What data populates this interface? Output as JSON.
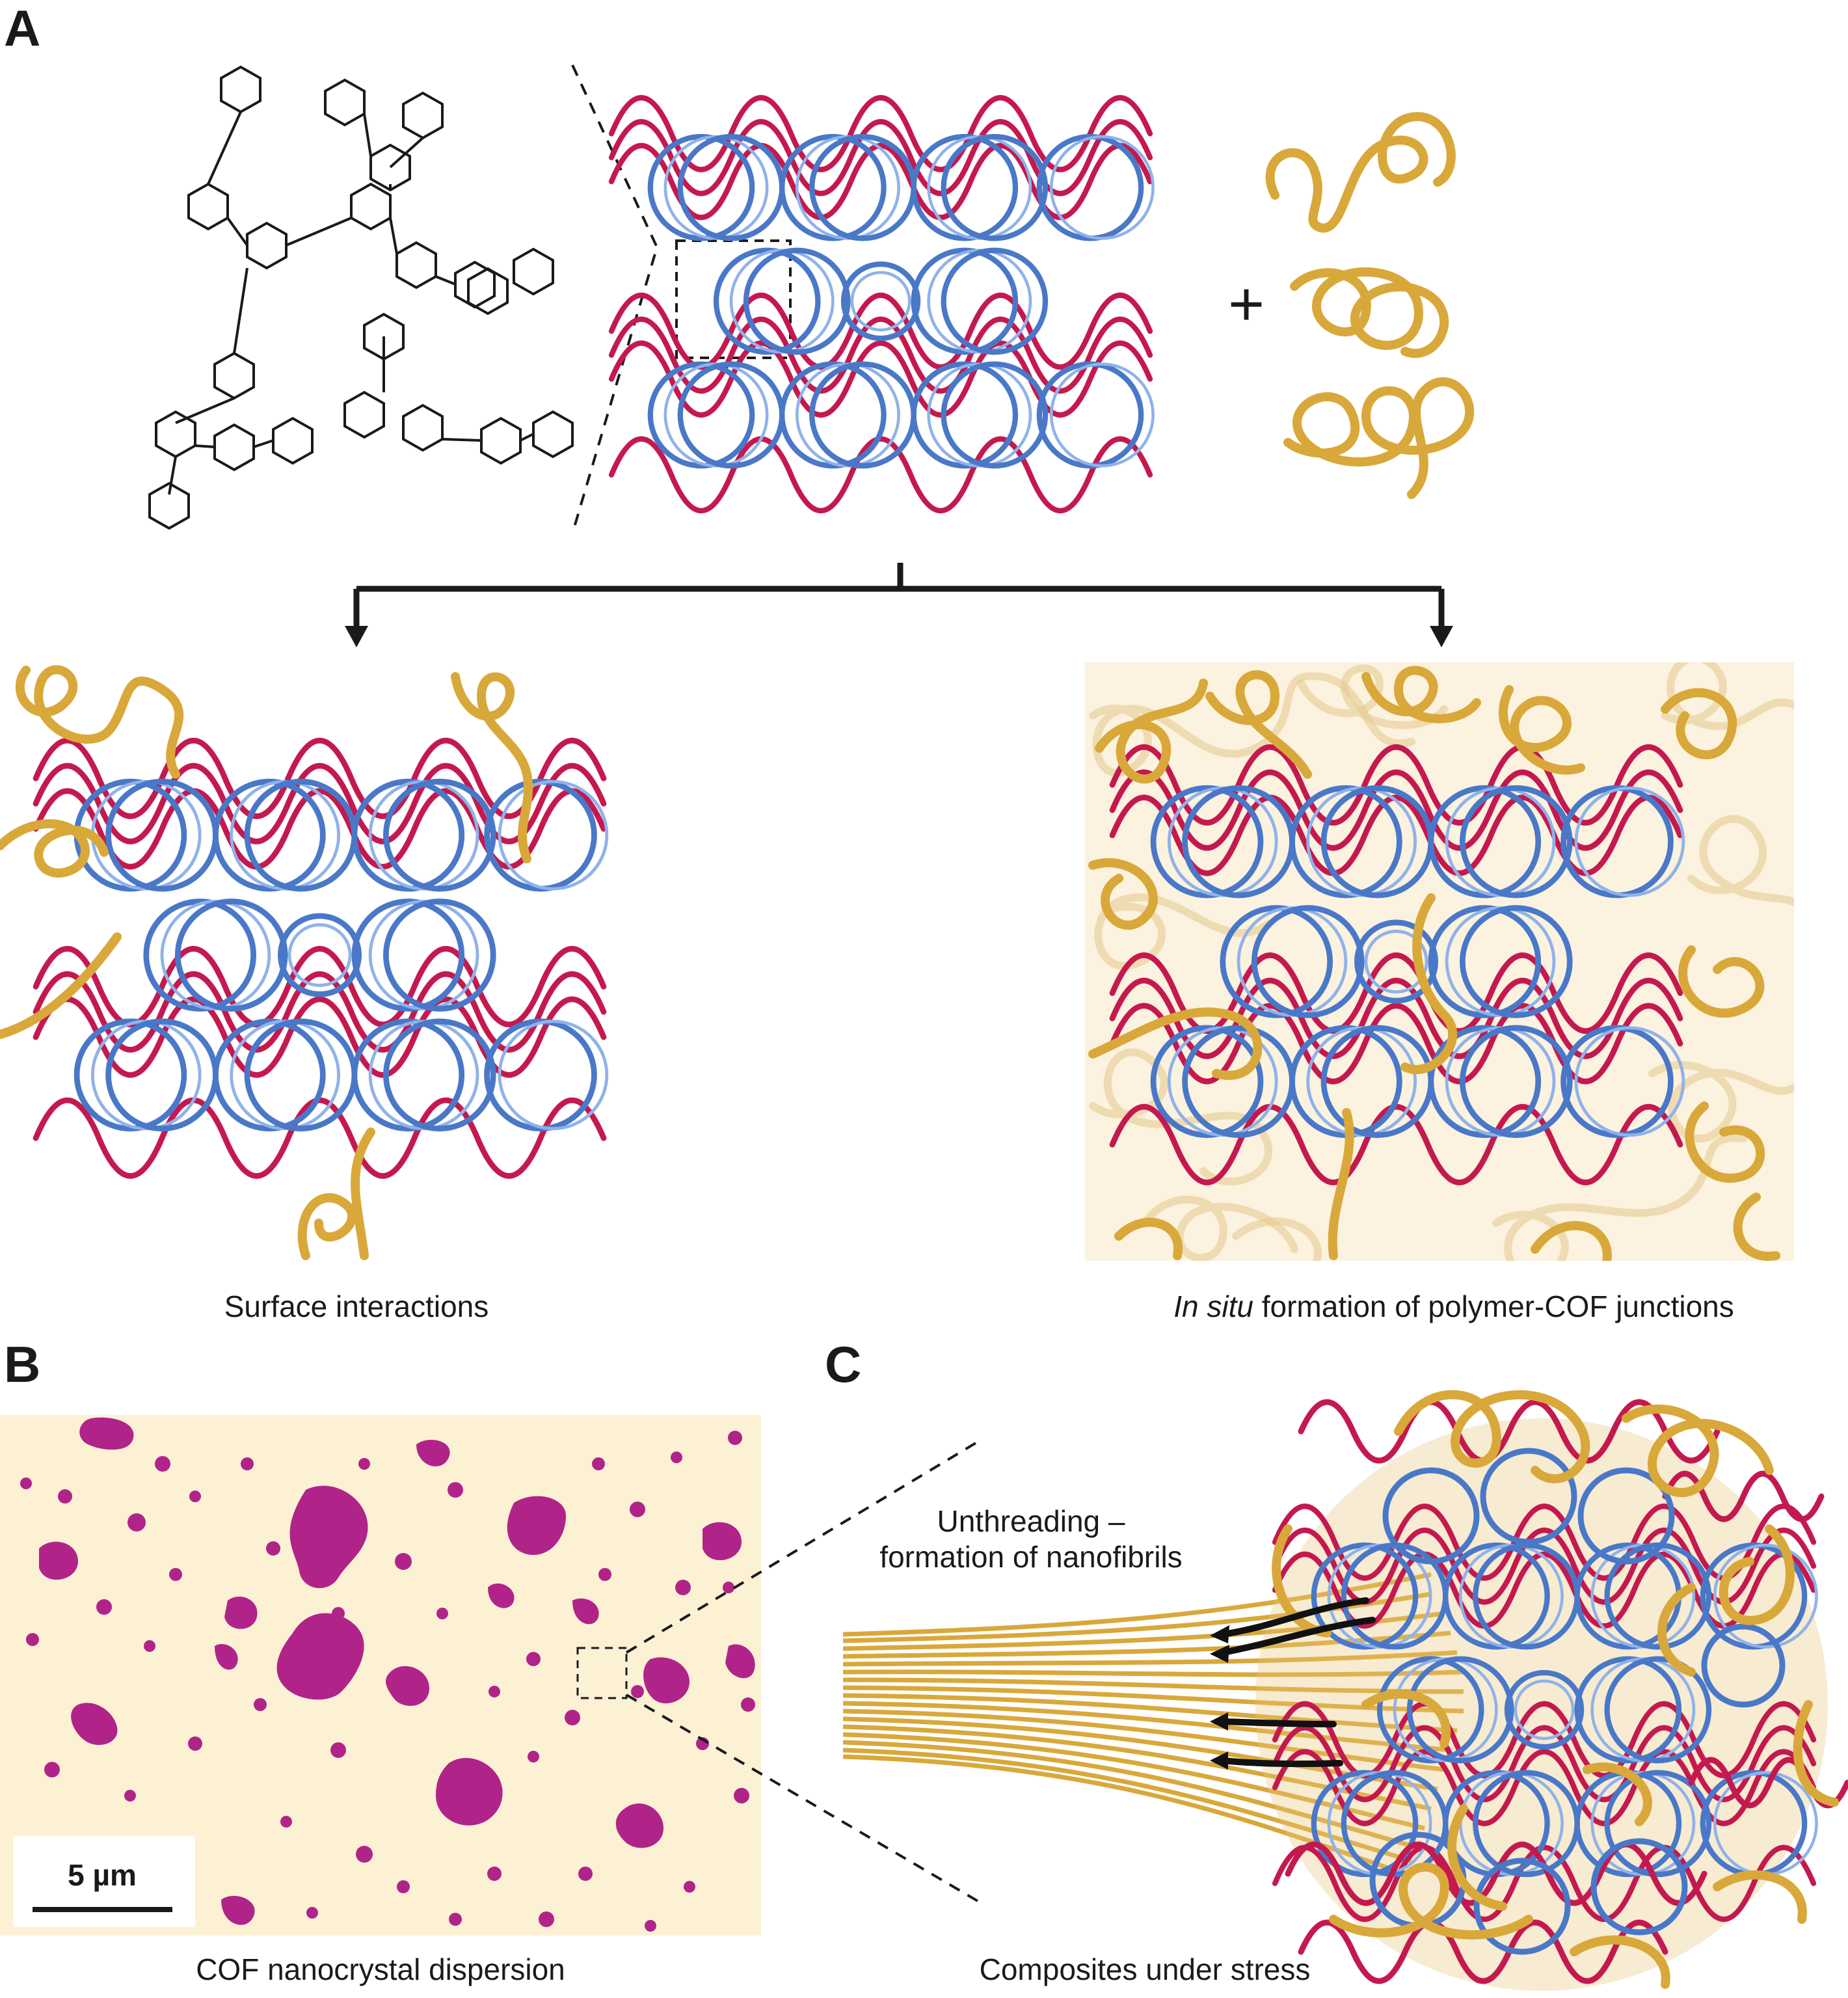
{
  "panels": {
    "a": {
      "letter": "A"
    },
    "b": {
      "letter": "B",
      "caption": "COF nanocrystal dispersion",
      "scale_bar": "5 µm"
    },
    "c": {
      "letter": "C",
      "caption": "Composites under stress",
      "annotation_line1": "Unthreading –",
      "annotation_line2": "formation of nanofibrils"
    }
  },
  "panel_a": {
    "plus_sign": "+",
    "left_caption": "Surface interactions",
    "right_caption_italic": "In situ",
    "right_caption_rest": " formation of polymer-COF junctions"
  },
  "colors": {
    "cof_red": "#c4194f",
    "cof_blue": "#4a78c8",
    "polymer_gold": "#d9a83a",
    "dispersion_background": "#fdf1d4",
    "nanocrystal_magenta": "#b0248a"
  }
}
